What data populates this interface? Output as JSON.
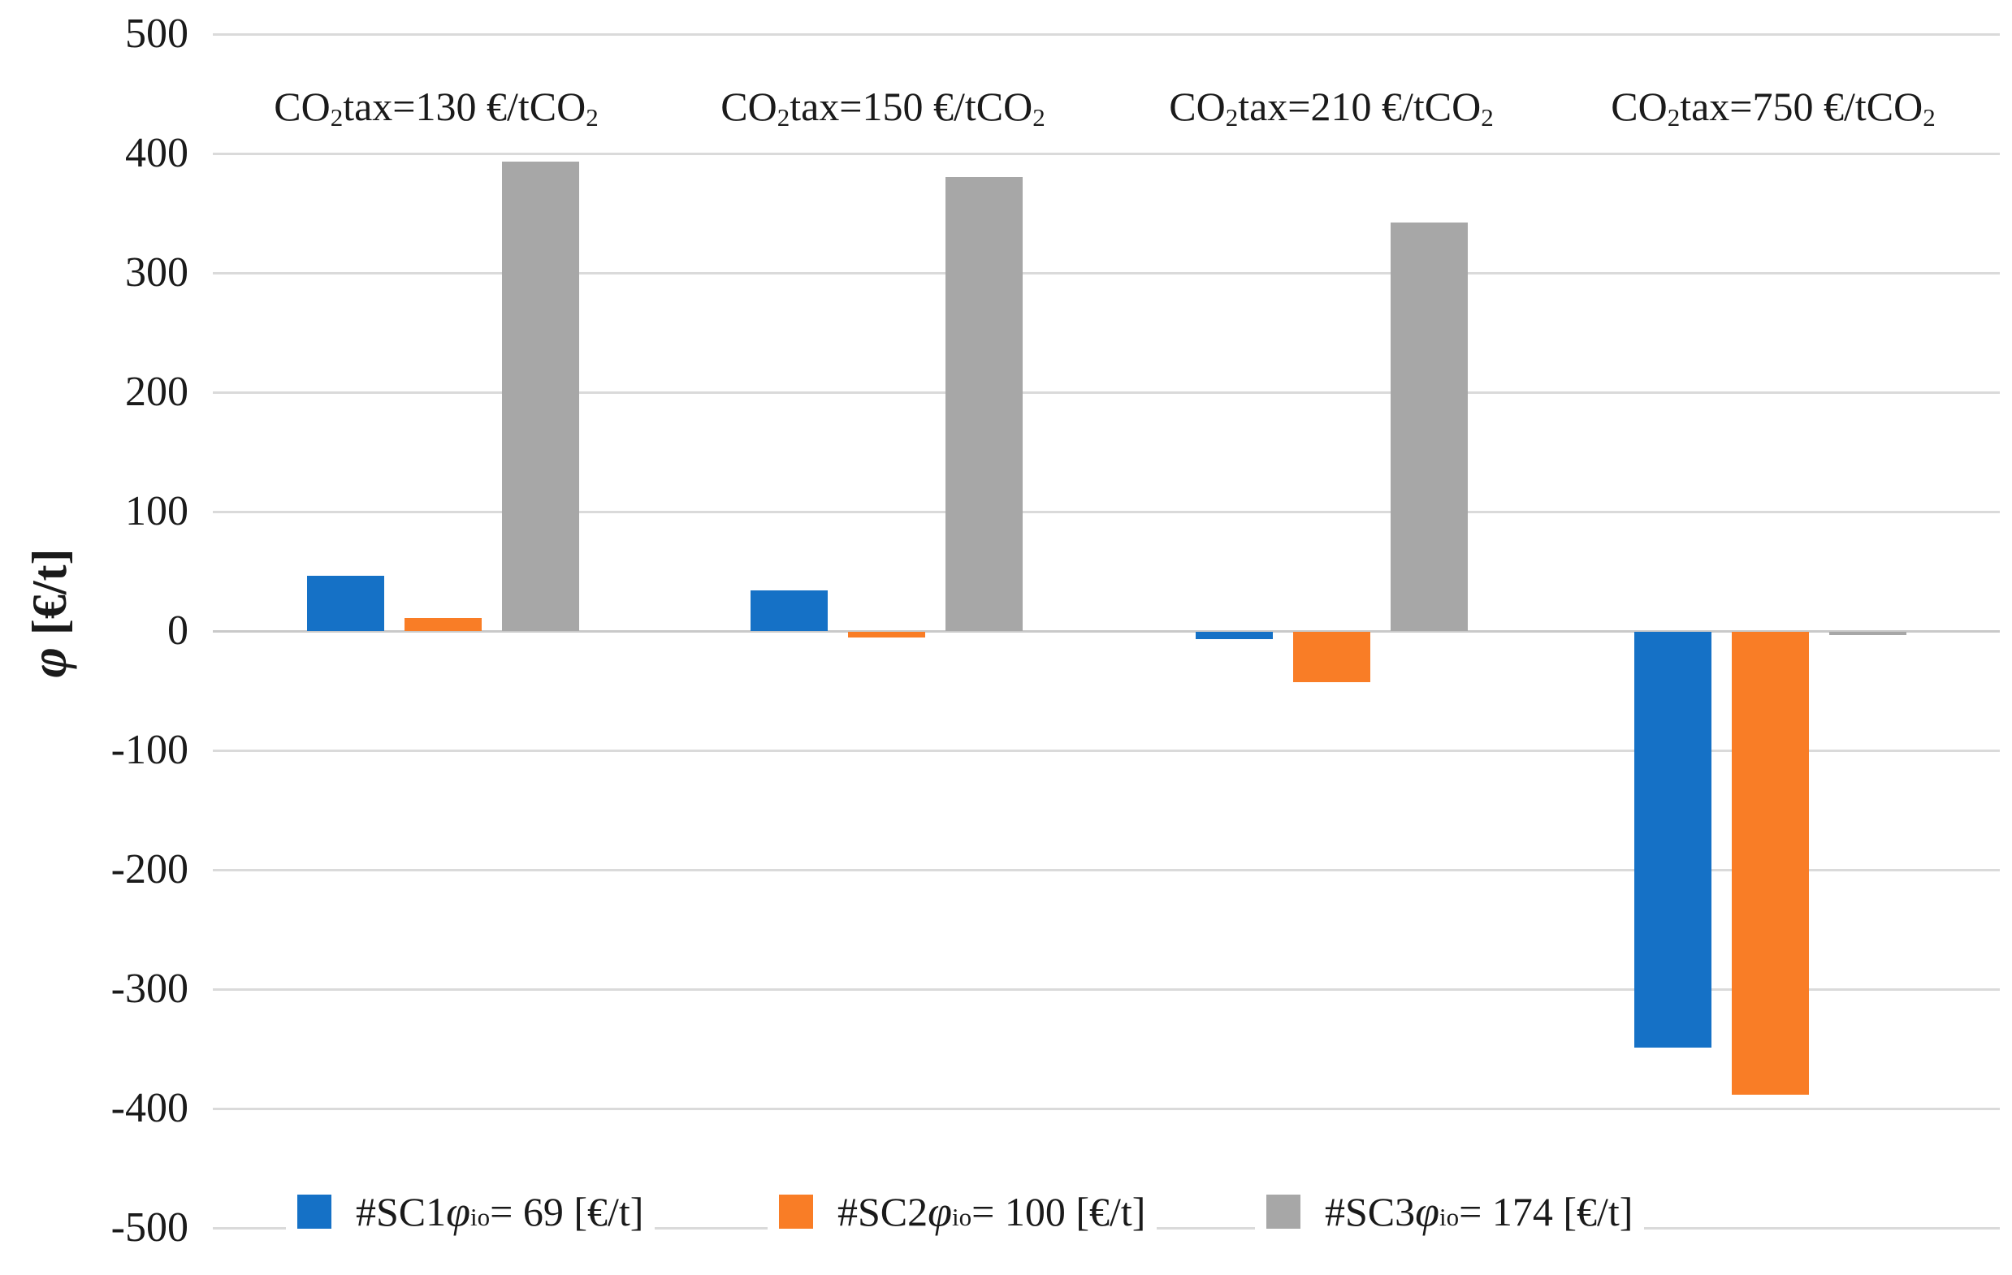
{
  "chart_data": {
    "type": "bar",
    "title": "",
    "ylabel_phi": "φ",
    "ylabel_unit": " [€/t]",
    "ylim": [
      -500,
      500
    ],
    "y_ticks": [
      500,
      400,
      300,
      200,
      100,
      0,
      -100,
      -200,
      -300,
      -400,
      -500
    ],
    "grid": true,
    "legend_position": "bottom-inside",
    "gridline_color": "#DADADA",
    "categories": [
      {
        "text": "CO₂tax=130 €/tCO₂",
        "pre": "CO",
        "sub1": "2",
        "mid": "tax=130 €/tCO",
        "sub2": "2"
      },
      {
        "text": "CO₂tax=150 €/tCO₂",
        "pre": "CO",
        "sub1": "2",
        "mid": "tax=150 €/tCO",
        "sub2": "2"
      },
      {
        "text": "CO₂tax=210 €/tCO₂",
        "pre": "CO",
        "sub1": "2",
        "mid": "tax=210 €/tCO",
        "sub2": "2"
      },
      {
        "text": "CO₂tax=750 €/tCO₂",
        "pre": "CO",
        "sub1": "2",
        "mid": "tax=750 €/tCO",
        "sub2": "2"
      }
    ],
    "series": [
      {
        "name": "#SC1 ",
        "phi": "φ",
        "phi_sub": "io",
        "legend_value": "= 69 [€/t]",
        "color": "#1571C6",
        "values": [
          46,
          34,
          -6,
          -348
        ]
      },
      {
        "name": "#SC2 ",
        "phi": "φ",
        "phi_sub": "io",
        "legend_value": "= 100 [€/t]",
        "color": "#F97D26",
        "values": [
          11,
          -5,
          -42,
          -388
        ]
      },
      {
        "name": "#SC3 ",
        "phi": "φ",
        "phi_sub": "io",
        "legend_value": "= 174 [€/t]",
        "color": "#A7A7A7",
        "values": [
          393,
          380,
          342,
          -2
        ]
      }
    ]
  }
}
